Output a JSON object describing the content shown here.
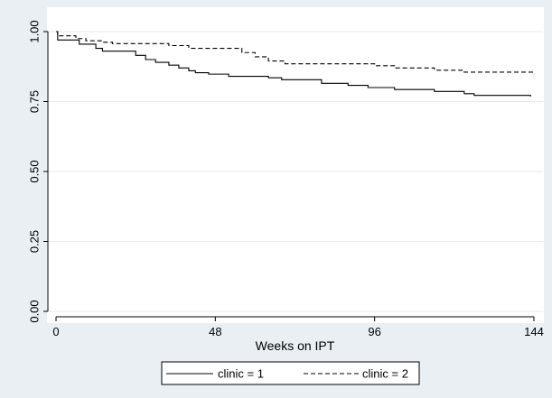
{
  "chart_data": {
    "type": "line",
    "title": "",
    "xlabel": "Weeks on IPT",
    "ylabel": "",
    "xlim": [
      0,
      144
    ],
    "ylim": [
      0,
      1
    ],
    "x_ticks": [
      0,
      48,
      96,
      144
    ],
    "x_tick_labels": [
      "0",
      "48",
      "96",
      "144"
    ],
    "y_ticks": [
      0,
      0.25,
      0.5,
      0.75,
      1
    ],
    "y_tick_labels": [
      "0.00",
      "0.25",
      "0.50",
      "0.75",
      "1.00"
    ],
    "grid": "horizontal",
    "legend_position": "bottom",
    "step": true,
    "series": [
      {
        "name": "clinic = 1",
        "line_style": "solid",
        "points": [
          [
            0,
            1.0
          ],
          [
            0.5,
            0.97
          ],
          [
            7,
            0.955
          ],
          [
            12,
            0.94
          ],
          [
            14,
            0.93
          ],
          [
            24,
            0.915
          ],
          [
            27,
            0.9
          ],
          [
            30,
            0.89
          ],
          [
            34,
            0.88
          ],
          [
            37,
            0.87
          ],
          [
            40,
            0.86
          ],
          [
            42,
            0.853
          ],
          [
            46,
            0.848
          ],
          [
            52,
            0.84
          ],
          [
            64,
            0.835
          ],
          [
            68,
            0.828
          ],
          [
            80,
            0.815
          ],
          [
            88,
            0.808
          ],
          [
            94,
            0.8
          ],
          [
            102,
            0.793
          ],
          [
            114,
            0.786
          ],
          [
            123,
            0.778
          ],
          [
            126,
            0.772
          ],
          [
            143,
            0.768
          ]
        ]
      },
      {
        "name": "clinic = 2",
        "line_style": "dashed",
        "points": [
          [
            0,
            1.0
          ],
          [
            0.5,
            0.985
          ],
          [
            6,
            0.975
          ],
          [
            9,
            0.967
          ],
          [
            14,
            0.962
          ],
          [
            17,
            0.957
          ],
          [
            34,
            0.95
          ],
          [
            40,
            0.94
          ],
          [
            56,
            0.925
          ],
          [
            60,
            0.91
          ],
          [
            64,
            0.895
          ],
          [
            69,
            0.885
          ],
          [
            96,
            0.878
          ],
          [
            102,
            0.87
          ],
          [
            114,
            0.862
          ],
          [
            123,
            0.855
          ],
          [
            144,
            0.848
          ]
        ]
      }
    ]
  }
}
